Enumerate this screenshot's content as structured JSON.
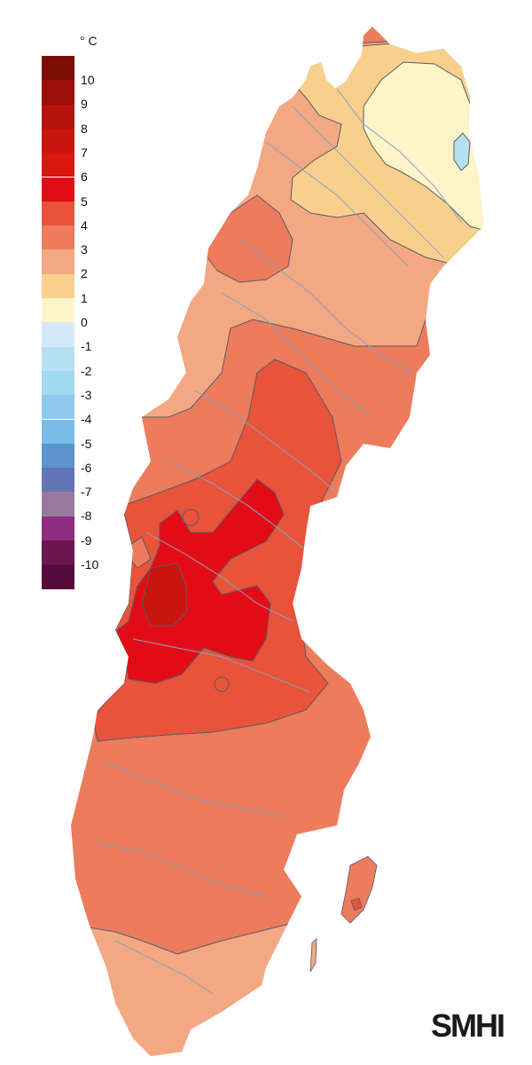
{
  "legend": {
    "unit": "° C",
    "items": [
      {
        "label": "10",
        "color": "#7a0d06"
      },
      {
        "label": "9",
        "color": "#9a0f08"
      },
      {
        "label": "8",
        "color": "#b4120b"
      },
      {
        "label": "7",
        "color": "#c8150d"
      },
      {
        "label": "6",
        "color": "#da1710"
      },
      {
        "label": "5",
        "color": "#e30c16"
      },
      {
        "label": "4",
        "color": "#e8533a"
      },
      {
        "label": "3",
        "color": "#ec7c5c"
      },
      {
        "label": "2",
        "color": "#f3a883"
      },
      {
        "label": "1",
        "color": "#f8d08c"
      },
      {
        "label": "0",
        "color": "#fdf5c8"
      },
      {
        "label": "-1",
        "color": "#d5eaf7"
      },
      {
        "label": "-2",
        "color": "#b8e0f3"
      },
      {
        "label": "-3",
        "color": "#a3d8f1"
      },
      {
        "label": "-4",
        "color": "#8fc9ee"
      },
      {
        "label": "-5",
        "color": "#79bbe9"
      },
      {
        "label": "-6",
        "color": "#5c93d0"
      },
      {
        "label": "-7",
        "color": "#6275b4"
      },
      {
        "label": "-8",
        "color": "#987a9e"
      },
      {
        "label": "-9",
        "color": "#8e2d82"
      },
      {
        "label": "-10",
        "color": "#6b164f"
      },
      {
        "label": "",
        "color": "#570b3a"
      }
    ]
  },
  "map": {
    "region_colors": {
      "base": "#ec7c5c",
      "south": "#f3a883",
      "north_mid": "#f3a883",
      "north_top": "#f8d08c",
      "north_cold": "#fdf5c8",
      "lake_cold": "#b8e0f3",
      "center": "#e8533a",
      "core": "#e30c16",
      "peak": "#c8150d",
      "rivers": "#8aa2c0",
      "contour": "#5a5a68"
    }
  },
  "logo": {
    "text": "SMHI"
  }
}
